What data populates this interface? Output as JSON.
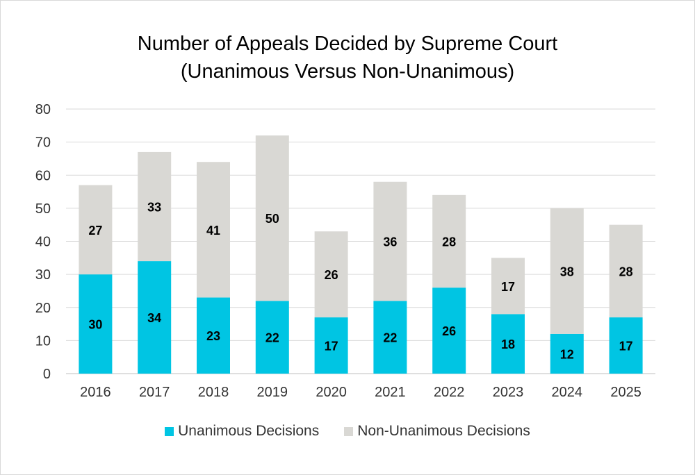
{
  "chart_data": {
    "type": "bar",
    "stacked": true,
    "title": "Number of Appeals Decided by Supreme Court",
    "subtitle": "(Unanimous Versus Non-Unanimous)",
    "xlabel": "",
    "ylabel": "",
    "ylim": [
      0,
      80
    ],
    "yticks": [
      0,
      10,
      20,
      30,
      40,
      50,
      60,
      70,
      80
    ],
    "grid": true,
    "legend_position": "bottom",
    "categories": [
      "2016",
      "2017",
      "2018",
      "2019",
      "2020",
      "2021",
      "2022",
      "2023",
      "2024",
      "2025"
    ],
    "series": [
      {
        "name": "Unanimous Decisions",
        "color": "#00c5e3",
        "values": [
          30,
          34,
          23,
          22,
          17,
          22,
          26,
          18,
          12,
          17
        ]
      },
      {
        "name": "Non-Unanimous Decisions",
        "color": "#d9d8d4",
        "values": [
          27,
          33,
          41,
          50,
          26,
          36,
          28,
          17,
          38,
          28
        ]
      }
    ]
  }
}
